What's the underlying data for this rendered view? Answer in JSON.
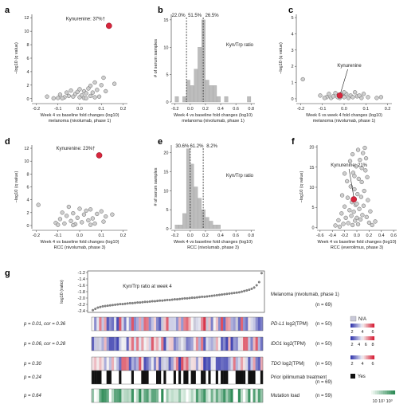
{
  "chart_data": [
    {
      "id": "a",
      "type": "scatter",
      "ylabel": "−log10 (q value)",
      "xlabel": "Week 4 vs baseline fold changes (log10)",
      "subtitle": "melanoma (nivolumab, phase 1)",
      "xlim": [
        -0.22,
        0.22
      ],
      "ylim": [
        -0.5,
        12.5
      ],
      "xticks": [
        "-0.2",
        "-0.1",
        "0.0",
        "0.1",
        "0.2"
      ],
      "xtick_values": [
        -0.2,
        -0.1,
        0.0,
        0.1,
        0.2
      ],
      "yticks": [
        "0",
        "2",
        "4",
        "6",
        "8",
        "10",
        "12"
      ],
      "ytick_values": [
        0,
        2,
        4,
        6,
        8,
        10,
        12
      ],
      "annotation": "Kynurenine: 37%†",
      "highlight": {
        "x": 0.135,
        "y": 10.8
      },
      "points": [
        [
          -0.15,
          0.3
        ],
        [
          -0.1,
          0.1
        ],
        [
          -0.09,
          0.6
        ],
        [
          -0.07,
          0.2
        ],
        [
          -0.06,
          0.9
        ],
        [
          -0.05,
          0.4
        ],
        [
          -0.04,
          1.2
        ],
        [
          -0.03,
          0.3
        ],
        [
          -0.02,
          0.7
        ],
        [
          -0.01,
          1.0
        ],
        [
          0.0,
          0.2
        ],
        [
          0.0,
          1.4
        ],
        [
          0.01,
          0.5
        ],
        [
          0.02,
          1.1
        ],
        [
          0.02,
          0.1
        ],
        [
          0.03,
          0.8
        ],
        [
          0.04,
          1.5
        ],
        [
          0.05,
          0.4
        ],
        [
          0.05,
          1.9
        ],
        [
          0.06,
          0.9
        ],
        [
          0.07,
          2.4
        ],
        [
          0.08,
          1.3
        ],
        [
          0.09,
          0.3
        ],
        [
          0.1,
          2.0
        ],
        [
          0.11,
          3.1
        ],
        [
          0.12,
          1.1
        ],
        [
          0.16,
          2.2
        ],
        [
          -0.08,
          0.05
        ],
        [
          -0.12,
          0.05
        ],
        [
          0.03,
          0.05
        ],
        [
          0.07,
          0.2
        ]
      ]
    },
    {
      "id": "b",
      "type": "bar",
      "ylabel": "# of serum samples",
      "xlabel": "Week 4 vs baseline fold changes (log10)",
      "subtitle": "melanoma (nivolumab, phase 1)",
      "legend": "Kyn/Trp ratio",
      "xlim": [
        -0.25,
        0.85
      ],
      "ylim": [
        0,
        16
      ],
      "xticks": [
        "-0.2",
        "0.0",
        "0.2",
        "0.4",
        "0.6",
        "0.8"
      ],
      "xtick_values": [
        -0.2,
        0.0,
        0.2,
        0.4,
        0.6,
        0.8
      ],
      "yticks": [
        "0",
        "5",
        "10",
        "15"
      ],
      "ytick_values": [
        0,
        5,
        10,
        15
      ],
      "percent_labels": [
        "22.0%",
        "51.5%",
        "26.5%"
      ],
      "cutoffs": [
        -0.05,
        0.17
      ],
      "bin_width": 0.05,
      "bins": [
        -0.2,
        -0.15,
        -0.1,
        -0.05,
        0.0,
        0.05,
        0.1,
        0.15,
        0.2,
        0.25,
        0.3,
        0.35,
        0.4,
        0.45,
        0.5,
        0.55,
        0.6,
        0.65,
        0.7,
        0.75
      ],
      "values": [
        1,
        0,
        1,
        4,
        3,
        6,
        10,
        15,
        4,
        3,
        3,
        1,
        0,
        1,
        0,
        0,
        0,
        0,
        0,
        1
      ]
    },
    {
      "id": "c",
      "type": "scatter",
      "ylabel": "−log10 (q value)",
      "xlabel": "Week 6 vs week 4 fold changes (log10)",
      "subtitle": "melanoma (nivolumab, phase 1)",
      "xlim": [
        -0.22,
        0.22
      ],
      "ylim": [
        -0.2,
        5.2
      ],
      "xticks": [
        "-0.2",
        "-0.1",
        "0.0",
        "0.1",
        "0.2"
      ],
      "xtick_values": [
        -0.2,
        -0.1,
        0.0,
        0.1,
        0.2
      ],
      "yticks": [
        "0",
        "1",
        "2",
        "3",
        "4",
        "5"
      ],
      "ytick_values": [
        0,
        1,
        2,
        3,
        4,
        5
      ],
      "annotation": "Kynurenine",
      "highlight": {
        "x": -0.02,
        "y": 0.2
      },
      "points": [
        [
          -0.19,
          1.2
        ],
        [
          -0.11,
          0.2
        ],
        [
          -0.08,
          0.1
        ],
        [
          -0.07,
          0.3
        ],
        [
          -0.06,
          0.05
        ],
        [
          -0.05,
          0.15
        ],
        [
          -0.04,
          0.35
        ],
        [
          -0.03,
          0.1
        ],
        [
          -0.02,
          0.05
        ],
        [
          -0.01,
          0.25
        ],
        [
          0.0,
          0.1
        ],
        [
          0.01,
          0.3
        ],
        [
          0.02,
          0.05
        ],
        [
          0.03,
          0.2
        ],
        [
          0.04,
          0.1
        ],
        [
          0.05,
          0.4
        ],
        [
          0.06,
          0.15
        ],
        [
          0.08,
          0.05
        ],
        [
          0.09,
          0.3
        ],
        [
          0.11,
          0.1
        ],
        [
          0.15,
          0.05
        ],
        [
          0.17,
          0.1
        ],
        [
          -0.09,
          0.05
        ],
        [
          0.0,
          0.4
        ],
        [
          0.07,
          0.2
        ]
      ]
    },
    {
      "id": "d",
      "type": "scatter",
      "ylabel": "−log10 (q value)",
      "xlabel": "Week 4 vs baseline fold changes (log10)",
      "subtitle": "RCC (nivolumab, phase 3)",
      "xlim": [
        -0.22,
        0.22
      ],
      "ylim": [
        -0.5,
        12.5
      ],
      "xticks": [
        "-0.2",
        "-0.1",
        "0.0",
        "0.1",
        "0.2"
      ],
      "xtick_values": [
        -0.2,
        -0.1,
        0.0,
        0.1,
        0.2
      ],
      "yticks": [
        "0",
        "2",
        "4",
        "6",
        "8",
        "10",
        "12"
      ],
      "ytick_values": [
        0,
        2,
        4,
        6,
        8,
        10,
        12
      ],
      "annotation": "Kynurenine: 23%†",
      "highlight": {
        "x": 0.09,
        "y": 10.9
      },
      "points": [
        [
          -0.19,
          3.2
        ],
        [
          -0.11,
          0.4
        ],
        [
          -0.09,
          1.0
        ],
        [
          -0.08,
          2.0
        ],
        [
          -0.07,
          0.3
        ],
        [
          -0.06,
          1.5
        ],
        [
          -0.05,
          2.9
        ],
        [
          -0.04,
          0.7
        ],
        [
          -0.03,
          1.9
        ],
        [
          -0.02,
          0.2
        ],
        [
          -0.01,
          1.2
        ],
        [
          0.0,
          2.6
        ],
        [
          0.01,
          0.5
        ],
        [
          0.02,
          1.7
        ],
        [
          0.03,
          2.3
        ],
        [
          0.04,
          0.8
        ],
        [
          0.05,
          2.5
        ],
        [
          0.06,
          1.1
        ],
        [
          0.07,
          0.3
        ],
        [
          0.08,
          1.8
        ],
        [
          0.1,
          2.2
        ],
        [
          0.11,
          0.6
        ],
        [
          0.12,
          1.4
        ],
        [
          0.15,
          1.7
        ],
        [
          -0.03,
          0.05
        ],
        [
          0.05,
          0.1
        ],
        [
          -0.1,
          0.1
        ]
      ]
    },
    {
      "id": "e",
      "type": "bar",
      "ylabel": "# of serum samples",
      "xlabel": "Week 4 vs baseline fold changes (log10)",
      "subtitle": "RCC (nivolumab, phase 3)",
      "legend": "Kyn/Trp ratio",
      "xlim": [
        -0.25,
        0.85
      ],
      "ylim": [
        0,
        22
      ],
      "xticks": [
        "-0.2",
        "0.0",
        "0.2",
        "0.4",
        "0.6",
        "0.8"
      ],
      "xtick_values": [
        -0.2,
        0.0,
        0.2,
        0.4,
        0.6,
        0.8
      ],
      "yticks": [
        "0",
        "5",
        "10",
        "15",
        "20"
      ],
      "ytick_values": [
        0,
        5,
        10,
        15,
        20
      ],
      "percent_labels": [
        "30.6%",
        "61.2%",
        "8.2%"
      ],
      "cutoffs": [
        0.0,
        0.17
      ],
      "bin_width": 0.05,
      "bins": [
        -0.2,
        -0.15,
        -0.1,
        -0.05,
        0.0,
        0.05,
        0.1,
        0.15,
        0.2,
        0.25,
        0.3,
        0.35
      ],
      "values": [
        1,
        1,
        4,
        21,
        17,
        11,
        8,
        5,
        3,
        2,
        1,
        1
      ]
    },
    {
      "id": "f",
      "type": "scatter",
      "ylabel": "−log10 (q value)",
      "xlabel": "Week 4 vs baseline fold changes (log10)",
      "subtitle": "RCC (everolimus, phase 3)",
      "xlim": [
        -0.65,
        0.65
      ],
      "ylim": [
        -0.3,
        20.5
      ],
      "xticks": [
        "-0.6",
        "-0.4",
        "-0.2",
        "0.0",
        "0.2",
        "0.4",
        "0.6"
      ],
      "xtick_values": [
        -0.6,
        -0.4,
        -0.2,
        0.0,
        0.2,
        0.4,
        0.6
      ],
      "yticks": [
        "0",
        "5",
        "10",
        "15",
        "20"
      ],
      "ytick_values": [
        0,
        5,
        10,
        15,
        20
      ],
      "annotation": "Kynurenine: 21%",
      "highlight": {
        "x": -0.05,
        "y": 7.0
      },
      "points": [
        [
          -0.35,
          0.5
        ],
        [
          -0.3,
          1.8
        ],
        [
          -0.25,
          3.5
        ],
        [
          -0.22,
          0.9
        ],
        [
          -0.2,
          5.2
        ],
        [
          -0.18,
          2.4
        ],
        [
          -0.15,
          7.4
        ],
        [
          -0.14,
          1.1
        ],
        [
          -0.12,
          4.3
        ],
        [
          -0.1,
          10.2
        ],
        [
          -0.09,
          2.9
        ],
        [
          -0.08,
          6.3
        ],
        [
          -0.07,
          0.6
        ],
        [
          -0.06,
          13.6
        ],
        [
          -0.05,
          3.9
        ],
        [
          -0.04,
          9.5
        ],
        [
          -0.03,
          1.7
        ],
        [
          -0.02,
          5.6
        ],
        [
          -0.01,
          15.2
        ],
        [
          0.0,
          2.4
        ],
        [
          0.01,
          8.3
        ],
        [
          0.02,
          0.8
        ],
        [
          0.03,
          12.1
        ],
        [
          0.04,
          4.6
        ],
        [
          0.05,
          16.8
        ],
        [
          0.06,
          2.0
        ],
        [
          0.07,
          7.6
        ],
        [
          0.08,
          11.3
        ],
        [
          0.09,
          3.1
        ],
        [
          0.1,
          18.5
        ],
        [
          0.11,
          5.4
        ],
        [
          0.12,
          9.1
        ],
        [
          0.14,
          14.2
        ],
        [
          0.16,
          2.6
        ],
        [
          0.18,
          6.8
        ],
        [
          0.2,
          1.2
        ],
        [
          0.22,
          4.0
        ],
        [
          0.25,
          0.6
        ],
        [
          -0.28,
          0.2
        ],
        [
          0.3,
          1.5
        ],
        [
          -0.16,
          11.5
        ],
        [
          0.13,
          19.8
        ],
        [
          -0.11,
          16.5
        ],
        [
          0.02,
          19.3
        ],
        [
          -0.24,
          8.0
        ],
        [
          0.17,
          12.5
        ],
        [
          -0.04,
          12.8
        ],
        [
          0.08,
          14.8
        ],
        [
          0.15,
          17.2
        ],
        [
          -0.2,
          13.4
        ],
        [
          0.0,
          5.9
        ],
        [
          -0.07,
          18.2
        ]
      ]
    }
  ],
  "panel_g": {
    "title": "Kyn/Trp ratio at week 4",
    "ylabel": "log10 (ratio)",
    "yticks": [
      "-1.2",
      "-1.4",
      "-1.6",
      "-1.8",
      "-2.0",
      "-2.2",
      "-2.4"
    ],
    "ytick_values": [
      -1.2,
      -1.4,
      -1.6,
      -1.8,
      -2.0,
      -2.2,
      -2.4
    ],
    "ylim": [
      -2.45,
      -1.15
    ],
    "cohort": "Melanoma (nivolumab, phase 1)",
    "cohort_n": "(n = 69)",
    "ratio_values_sorted": [
      -2.38,
      -2.34,
      -2.3,
      -2.28,
      -2.26,
      -2.25,
      -2.24,
      -2.23,
      -2.22,
      -2.21,
      -2.2,
      -2.19,
      -2.19,
      -2.18,
      -2.17,
      -2.16,
      -2.16,
      -2.15,
      -2.14,
      -2.14,
      -2.13,
      -2.12,
      -2.12,
      -2.11,
      -2.1,
      -2.1,
      -2.09,
      -2.08,
      -2.08,
      -2.07,
      -2.06,
      -2.06,
      -2.05,
      -2.04,
      -2.04,
      -2.03,
      -2.02,
      -2.01,
      -2.01,
      -2.0,
      -1.99,
      -1.99,
      -1.98,
      -1.97,
      -1.96,
      -1.96,
      -1.95,
      -1.94,
      -1.93,
      -1.92,
      -1.91,
      -1.9,
      -1.89,
      -1.88,
      -1.87,
      -1.86,
      -1.85,
      -1.84,
      -1.83,
      -1.82,
      -1.8,
      -1.78,
      -1.76,
      -1.74,
      -1.71,
      -1.67,
      -1.6,
      -1.5,
      -1.22
    ],
    "rows": [
      {
        "stat": "p = 0.01, cor = 0.36",
        "label_italic": "PD-L1",
        "label": " log2(TPM)",
        "n": "(n = 50)"
      },
      {
        "stat": "p = 0.06, cor = 0.28",
        "label_italic": "IDO1",
        "label": " log2(TPM)",
        "n": "(n = 50)"
      },
      {
        "stat": "p = 0.30",
        "label_italic": "TDO",
        "label": " log2(TPM)",
        "n": "(n = 50)"
      },
      {
        "stat": "p = 0.24",
        "label_italic": "",
        "label": "Prior ipilimumab treatment",
        "n": "(n = 69)"
      },
      {
        "stat": "p = 0.64",
        "label_italic": "",
        "label": "Mutation load",
        "n": "(n = 59)"
      }
    ],
    "legends": {
      "na": "N/A",
      "pdl1_ticks": [
        "2",
        "4",
        "6"
      ],
      "ido1_ticks": [
        "2",
        "4",
        "6",
        "8"
      ],
      "tdo_ticks": [
        "2",
        "4",
        "6"
      ],
      "yes": "Yes",
      "mut_ticks": [
        "10",
        "10¹",
        "10³"
      ]
    },
    "colors": {
      "red": "#d7263d",
      "blue": "#3b3fb0",
      "green": "#2e8b57",
      "na": "#c9c9d9"
    }
  },
  "panel_labels": [
    "a",
    "b",
    "c",
    "d",
    "e",
    "f",
    "g"
  ]
}
